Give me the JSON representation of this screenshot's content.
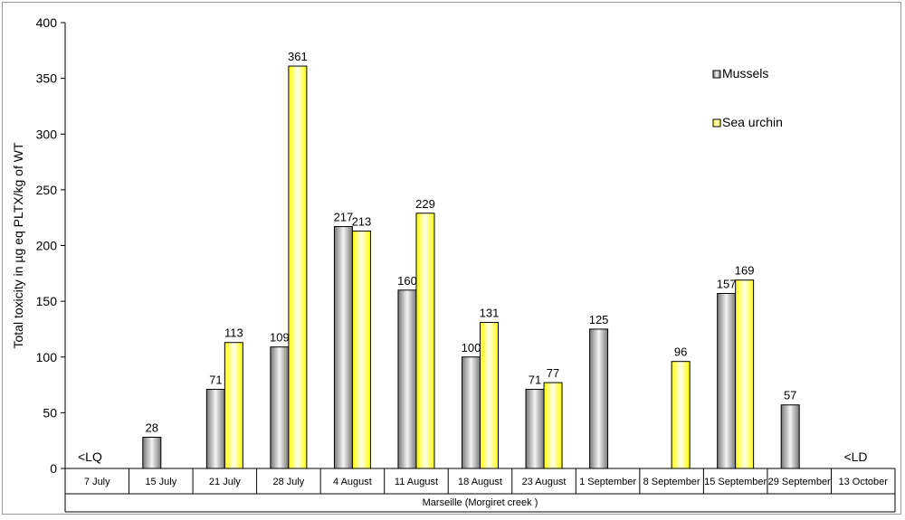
{
  "chart_data": {
    "type": "bar",
    "ylabel": "Total toxicity in µg eq PLTX/kg of WT",
    "xlabel": "Marseille (Morgiret creek )",
    "ylim": [
      0,
      400
    ],
    "yticks": [
      0,
      50,
      100,
      150,
      200,
      250,
      300,
      350,
      400
    ],
    "categories": [
      "7 July",
      "15 July",
      "21 July",
      "28 July",
      "4 August",
      "11 August",
      "18 August",
      "23 August",
      "1 September",
      "8 September",
      "15 September",
      "29 September",
      "13 October"
    ],
    "series": [
      {
        "name": "Mussels",
        "values": [
          null,
          28,
          71,
          109,
          217,
          160,
          100,
          71,
          125,
          null,
          157,
          57,
          null
        ]
      },
      {
        "name": "Sea urchin",
        "values": [
          null,
          null,
          113,
          361,
          213,
          229,
          131,
          77,
          null,
          96,
          169,
          null,
          null
        ]
      }
    ],
    "annotations": [
      {
        "category": "7 July",
        "text": "<LQ"
      },
      {
        "category": "13 October",
        "text": "<LD"
      }
    ],
    "legend_position": "top-right",
    "grid": false,
    "colors": {
      "Mussels": "#808080",
      "Sea urchin": "#ffff00"
    }
  }
}
